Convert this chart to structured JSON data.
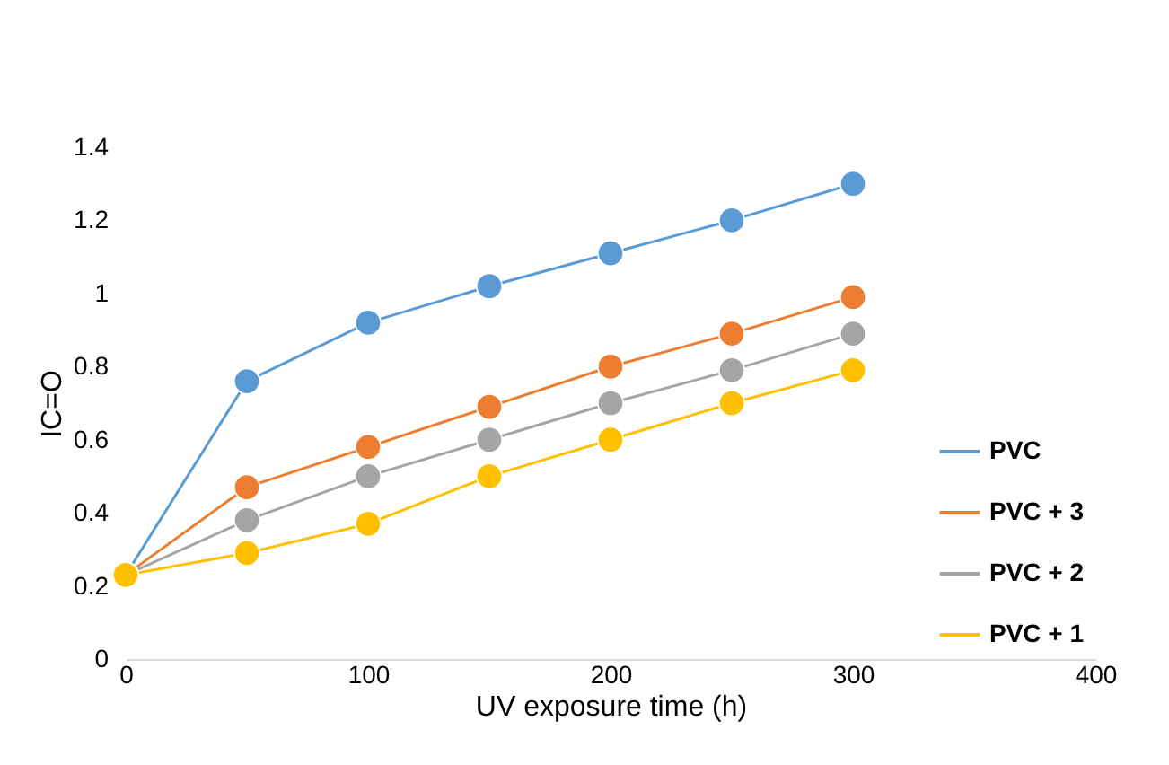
{
  "chart_data": {
    "type": "line",
    "xlabel": "UV exposure time (h)",
    "ylabel": "IC=O",
    "x": [
      0,
      50,
      100,
      150,
      200,
      250,
      300
    ],
    "series": [
      {
        "name": "PVC",
        "color": "#5b9bd5",
        "values": [
          0.23,
          0.76,
          0.92,
          1.02,
          1.11,
          1.2,
          1.3
        ]
      },
      {
        "name": "PVC + 3",
        "color": "#ed7d31",
        "values": [
          0.23,
          0.47,
          0.58,
          0.69,
          0.8,
          0.89,
          0.99
        ]
      },
      {
        "name": "PVC + 2",
        "color": "#a5a5a5",
        "values": [
          0.23,
          0.38,
          0.5,
          0.6,
          0.7,
          0.79,
          0.89
        ]
      },
      {
        "name": "PVC + 1",
        "color": "#ffc000",
        "values": [
          0.23,
          0.29,
          0.37,
          0.5,
          0.6,
          0.7,
          0.79
        ]
      }
    ],
    "xlim": [
      0,
      400
    ],
    "xticks": [
      0,
      100,
      200,
      300,
      400
    ],
    "ylim": [
      0,
      1.4
    ],
    "yticks": [
      0,
      0.2,
      0.4,
      0.6,
      0.8,
      1,
      1.2,
      1.4
    ],
    "grid": false,
    "legend": "bottom right",
    "marker": "circle",
    "line_style": "solid"
  }
}
